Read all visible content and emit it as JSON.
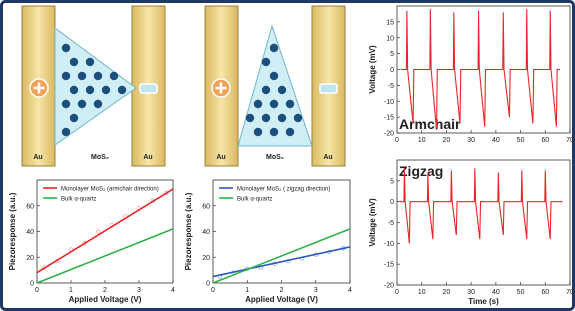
{
  "schematics": [
    {
      "left_electrode": "Au",
      "material": "MoS₂",
      "right_electrode": "Au"
    },
    {
      "left_electrode": "Au",
      "material": "MoS₂",
      "right_electrode": "Au"
    }
  ],
  "chart_data": [
    {
      "type": "line",
      "x_label": "Applied Voltage (V)",
      "y_label": "Piezoresponse (a.u.)",
      "xlim": [
        0,
        4
      ],
      "xticks": [
        0,
        1,
        2,
        3,
        4
      ],
      "ylim": [
        0,
        80
      ],
      "yticks": [
        0,
        20,
        40,
        60
      ],
      "series": [
        {
          "color": "#f4a3ab",
          "marker": "circle",
          "x": [
            0.2,
            0.6,
            1,
            1.4,
            1.8,
            2.2,
            2.6,
            3,
            3.4,
            3.8
          ],
          "values": [
            12,
            17,
            26,
            31,
            40,
            45,
            52,
            58,
            64,
            70
          ]
        },
        {
          "name": "Monolayer MoS₂ (armchair direction)",
          "color": "#e8262a",
          "x": [
            0,
            4
          ],
          "values": [
            8,
            73
          ]
        },
        {
          "name": "Bulk α-quartz",
          "color": "#2fb24a",
          "x": [
            0,
            4
          ],
          "values": [
            0,
            42
          ]
        }
      ]
    },
    {
      "type": "line",
      "x_label": "Applied Voltage (V)",
      "y_label": "Piezoresponse (a.u.)",
      "xlim": [
        0,
        4
      ],
      "xticks": [
        0,
        1,
        2,
        3,
        4
      ],
      "ylim": [
        0,
        80
      ],
      "yticks": [
        0,
        20,
        40,
        60
      ],
      "series": [
        {
          "color": "#8fb0e8",
          "marker": "circle",
          "x": [
            0.2,
            0.6,
            1,
            1.4,
            1.8,
            2.2,
            2.6,
            3,
            3.4,
            3.8
          ],
          "values": [
            5,
            8,
            11,
            12,
            15,
            17,
            19,
            22,
            24,
            27
          ]
        },
        {
          "name": "Monolayer MoS₂ ( zigzag direction)",
          "color": "#2b59c3",
          "x": [
            0,
            4
          ],
          "values": [
            5,
            28
          ]
        },
        {
          "name": "Bulk α-quartz",
          "color": "#2fb24a",
          "x": [
            0,
            4
          ],
          "values": [
            0,
            42
          ]
        }
      ]
    },
    {
      "type": "line",
      "label": "Armchair",
      "y_label": "Voltage (mV)",
      "xlim": [
        0,
        70
      ],
      "xticks": [
        0,
        10,
        20,
        30,
        40,
        50,
        60,
        70
      ],
      "ylim": [
        -20,
        20
      ],
      "yticks": [
        -20,
        -15,
        -10,
        -5,
        0,
        5,
        10,
        15
      ],
      "series": [
        {
          "color": "#e8262a",
          "x": [
            1.5,
            3.8,
            4,
            4.3,
            6.5,
            6.8,
            13.3,
            13.5,
            13.8,
            16,
            16.3,
            22.8,
            23,
            23.3,
            25.5,
            25.8,
            32.8,
            33,
            33.3,
            35.5,
            35.8,
            42.8,
            43,
            43.3,
            45.5,
            45.8,
            52.3,
            52.5,
            52.8,
            55,
            55.3,
            61.8,
            62,
            62.3,
            64.5,
            64.8,
            66
          ],
          "values": [
            0,
            0,
            18.5,
            0,
            -17,
            0,
            0,
            19,
            0,
            -19,
            0,
            0,
            18,
            0,
            -17,
            0,
            0,
            18.5,
            0,
            -18,
            0,
            0,
            18,
            0,
            -15,
            0,
            0,
            19,
            0,
            -17,
            0,
            0,
            18.5,
            0,
            -18,
            0,
            0
          ]
        }
      ]
    },
    {
      "type": "line",
      "label": "Zigzag",
      "x_label": "Time (s)",
      "y_label": "Voltage (mV)",
      "xlim": [
        0,
        70
      ],
      "xticks": [
        0,
        10,
        20,
        30,
        40,
        50,
        60,
        70
      ],
      "ylim": [
        -20,
        10
      ],
      "yticks": [
        -20,
        -15,
        -10,
        -5,
        0,
        5
      ],
      "series": [
        {
          "color": "#e8262a",
          "x": [
            1,
            2.8,
            3,
            3.3,
            5,
            5.3,
            12.3,
            12.5,
            12.8,
            14.5,
            14.8,
            21.8,
            22,
            22.3,
            24,
            24.3,
            31.3,
            31.5,
            31.8,
            33.5,
            33.8,
            40.8,
            41,
            41.3,
            43,
            43.3,
            50.3,
            50.5,
            50.8,
            52.5,
            52.8,
            59.8,
            60,
            60.3,
            62,
            62.3,
            67
          ],
          "values": [
            0,
            0,
            8,
            0,
            -10,
            0,
            0,
            7,
            0,
            -9,
            0,
            0,
            7.5,
            0,
            -8,
            0,
            0,
            8,
            0,
            -9,
            0,
            0,
            7,
            0,
            -8,
            0,
            0,
            7.5,
            0,
            -9,
            0,
            0,
            7.5,
            0,
            -9,
            0,
            0
          ]
        }
      ]
    }
  ]
}
